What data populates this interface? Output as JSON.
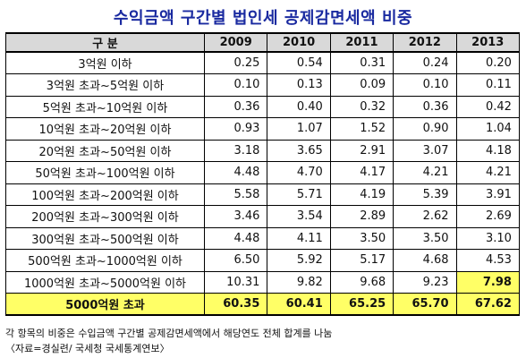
{
  "title": "수익금액 구간별 법인세 공제감면세액 비중",
  "table": {
    "header": {
      "category": "구 분",
      "years": [
        "2009",
        "2010",
        "2011",
        "2012",
        "2013"
      ]
    },
    "rows": [
      {
        "label": "3억원 이하",
        "values": [
          "0.25",
          "0.54",
          "0.31",
          "0.24",
          "0.20"
        ]
      },
      {
        "label": "3억원 초과~5억원 이하",
        "values": [
          "0.10",
          "0.13",
          "0.09",
          "0.10",
          "0.11"
        ]
      },
      {
        "label": "5억원 초과~10억원 이하",
        "values": [
          "0.36",
          "0.40",
          "0.32",
          "0.36",
          "0.42"
        ]
      },
      {
        "label": "10억원 초과~20억원 이하",
        "values": [
          "0.93",
          "1.07",
          "1.52",
          "0.90",
          "1.04"
        ]
      },
      {
        "label": "20억원 초과~50억원 이하",
        "values": [
          "3.18",
          "3.65",
          "2.91",
          "3.07",
          "4.18"
        ]
      },
      {
        "label": "50억원 초과~100억원 이하",
        "values": [
          "4.48",
          "4.70",
          "4.17",
          "4.21",
          "4.21"
        ]
      },
      {
        "label": "100억원 초과~200억원 이하",
        "values": [
          "5.58",
          "5.71",
          "4.19",
          "5.39",
          "3.91"
        ]
      },
      {
        "label": "200억원 초과~300억원 이하",
        "values": [
          "3.46",
          "3.54",
          "2.89",
          "2.62",
          "2.69"
        ]
      },
      {
        "label": "300억원 초과~500억원 이하",
        "values": [
          "4.48",
          "4.11",
          "3.50",
          "3.50",
          "3.10"
        ]
      },
      {
        "label": "500억원 초과~1000억원 이하",
        "values": [
          "6.50",
          "5.92",
          "5.17",
          "4.68",
          "4.53"
        ]
      },
      {
        "label": "1000억원 초과~5000억원 이하",
        "values": [
          "10.31",
          "9.82",
          "9.68",
          "9.23",
          "7.98"
        ],
        "highlight_last": true
      },
      {
        "label": "5000억원 초과",
        "values": [
          "60.35",
          "60.41",
          "65.25",
          "65.70",
          "67.62"
        ],
        "highlight_row": true
      }
    ]
  },
  "notes": [
    "각 항목의 비중은 수입금액 구간별 공제감면세액에서 해당연도 전체 합계를 나눔",
    "〈자료=경실련/ 국세청 국세통계연보〉"
  ],
  "colors": {
    "title": "#1a2aa0",
    "header_bg": "#d9d9d9",
    "highlight": "#ffff66"
  }
}
